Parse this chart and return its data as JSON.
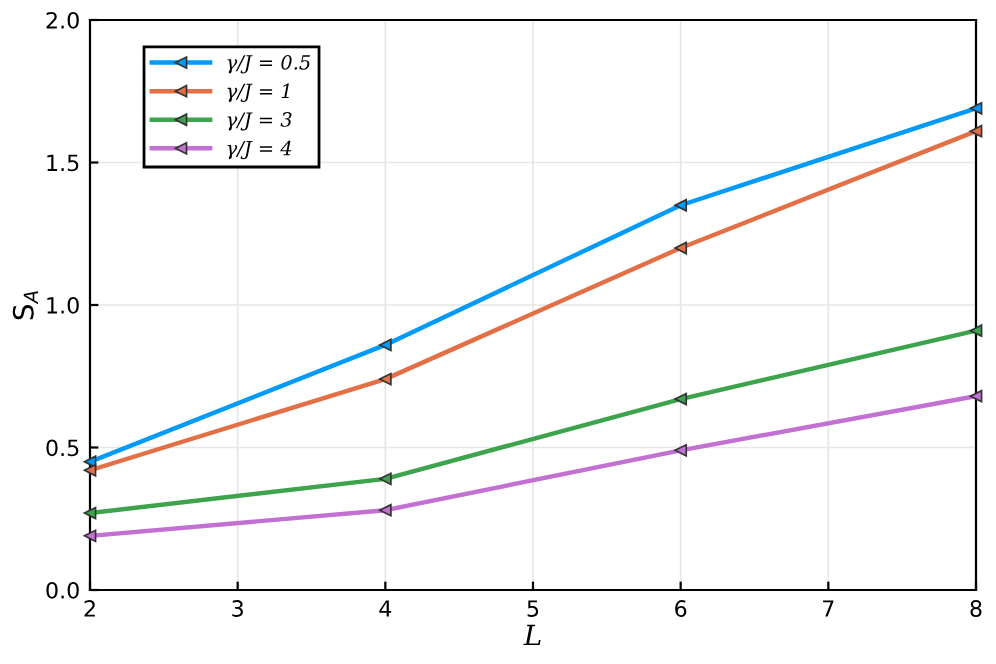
{
  "chart_data": {
    "type": "line",
    "xlabel": "L",
    "ylabel": "S$_{A}$",
    "x": [
      2,
      4,
      6,
      8
    ],
    "series": [
      {
        "name": "γ/J = 0.5",
        "color": "#009af9",
        "values": [
          0.45,
          0.86,
          1.35,
          1.69
        ]
      },
      {
        "name": "γ/J = 1",
        "color": "#e26f46",
        "values": [
          0.42,
          0.74,
          1.2,
          1.61
        ]
      },
      {
        "name": "γ/J = 3",
        "color": "#3da44d",
        "values": [
          0.27,
          0.39,
          0.67,
          0.91
        ]
      },
      {
        "name": "γ/J = 4",
        "color": "#c271d2",
        "values": [
          0.19,
          0.28,
          0.49,
          0.68
        ]
      }
    ],
    "xlim": [
      2,
      8
    ],
    "xticks": [
      2,
      3,
      4,
      5,
      6,
      7,
      8
    ],
    "ylim": [
      0,
      2
    ],
    "yticks": [
      {
        "value": 0,
        "label": "0.0"
      },
      0.5,
      {
        "value": 1,
        "label": "1.0"
      },
      1.5,
      {
        "value": 2,
        "label": "2.0"
      }
    ],
    "grid": true,
    "legend": "top left",
    "marker": "triangle_left",
    "line_style": "solid"
  }
}
